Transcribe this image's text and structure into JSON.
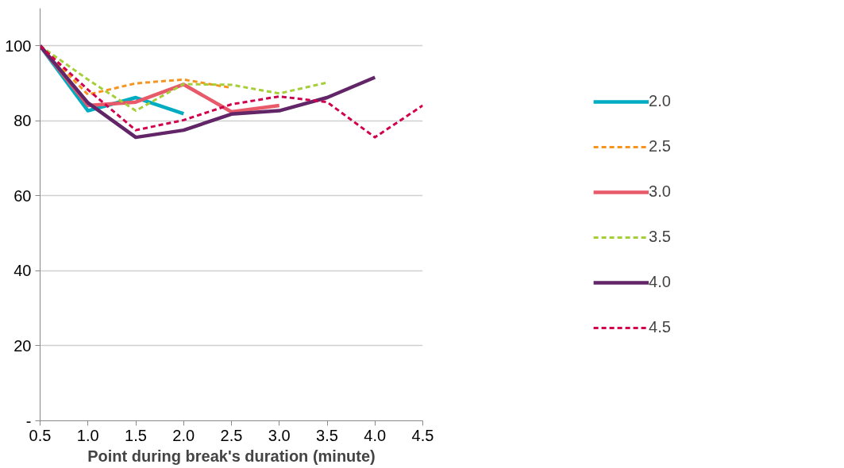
{
  "chart_data": {
    "type": "line",
    "xlabel": "Point during break's duration (minute)",
    "x": [
      0.5,
      1.0,
      1.5,
      2.0,
      2.5,
      3.0,
      3.5,
      4.0,
      4.5
    ],
    "series": [
      {
        "name": "2.0",
        "color": "#00acc1",
        "line_style": "solid",
        "values": [
          100,
          82.7,
          86.2,
          81.9,
          null,
          null,
          null,
          null,
          null
        ]
      },
      {
        "name": "2.5",
        "color": "#f7941d",
        "line_style": "dashed",
        "values": [
          100,
          87.0,
          90.0,
          91.0,
          88.8,
          null,
          null,
          null,
          null
        ]
      },
      {
        "name": "3.0",
        "color": "#e85a6a",
        "line_style": "solid",
        "values": [
          100,
          84.1,
          85.0,
          89.7,
          82.4,
          84.1,
          null,
          null,
          null
        ]
      },
      {
        "name": "3.5",
        "color": "#a6ce39",
        "line_style": "dashed",
        "values": [
          100,
          91.0,
          82.7,
          89.8,
          89.6,
          87.3,
          90.2,
          null,
          null
        ]
      },
      {
        "name": "4.0",
        "color": "#622567",
        "line_style": "solid",
        "values": [
          100,
          84.8,
          75.6,
          77.5,
          81.8,
          82.7,
          86.2,
          91.6,
          null
        ]
      },
      {
        "name": "4.5",
        "color": "#d1004d",
        "line_style": "dashed",
        "values": [
          100,
          88.3,
          77.5,
          80.2,
          84.4,
          86.5,
          85.0,
          75.6,
          84.1
        ]
      }
    ],
    "xlim": [
      0.5,
      4.5
    ],
    "xticks": [
      0.5,
      {
        "value": 1.0,
        "label": "1.0"
      },
      1.5,
      {
        "value": 2.0,
        "label": "2.0"
      },
      2.5,
      {
        "value": 3.0,
        "label": "3.0"
      },
      3.5,
      {
        "value": 4.0,
        "label": "4.0"
      },
      4.5
    ],
    "ylim": [
      0,
      110
    ],
    "yticks": [
      {
        "value": 0,
        "label": "-"
      },
      20,
      40,
      60,
      80,
      100
    ],
    "grid": "y",
    "legend": "right",
    "marker": "none"
  }
}
